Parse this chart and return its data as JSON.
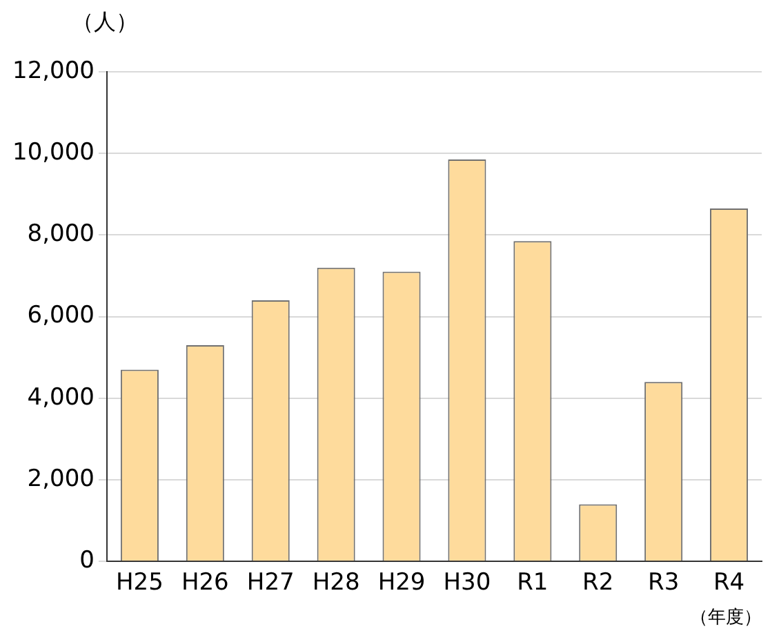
{
  "chart_data": {
    "type": "bar",
    "ylabel": "（人）",
    "xlabel": "（年度）",
    "categories": [
      "H25",
      "H26",
      "H27",
      "H28",
      "H29",
      "H30",
      "R1",
      "R2",
      "R3",
      "R4"
    ],
    "values": [
      4700,
      5300,
      6400,
      7200,
      7100,
      9850,
      7850,
      1400,
      4400,
      8650
    ],
    "color": "#fedb9c",
    "ylim": [
      0,
      12000
    ],
    "yticks": [
      0,
      {
        "value": 2000,
        "label": "2,000"
      },
      {
        "value": 4000,
        "label": "4,000"
      },
      {
        "value": 6000,
        "label": "6,000"
      },
      {
        "value": 8000,
        "label": "8,000"
      },
      {
        "value": 10000,
        "label": "10,000"
      },
      {
        "value": 12000,
        "label": "12,000"
      }
    ],
    "grid": "y",
    "legend": false
  }
}
